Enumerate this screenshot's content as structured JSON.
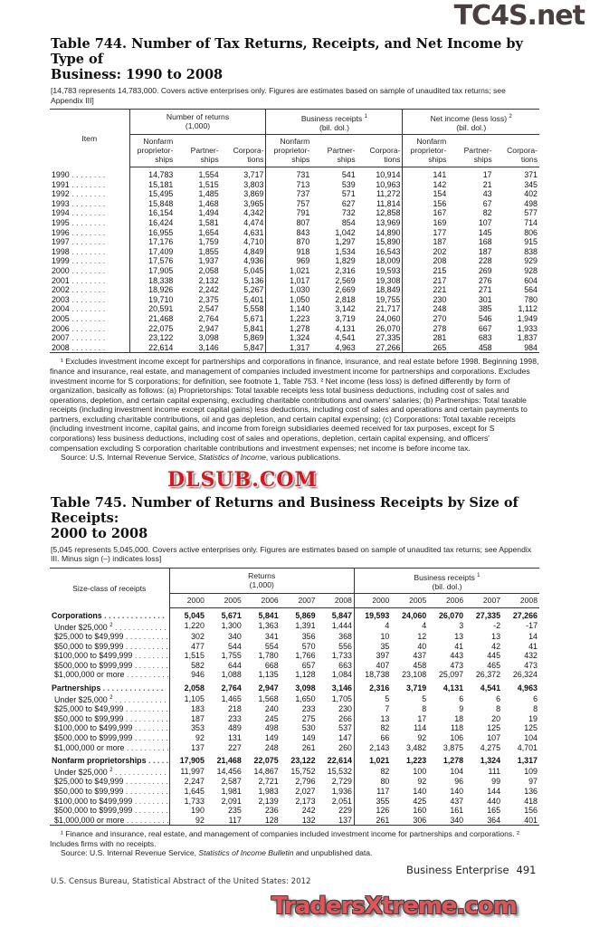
{
  "table744": {
    "title_line1": "Table 744. Number of Tax Returns, Receipts, and Net Income by Type of",
    "title_line2": "Business: 1990 to 2008",
    "note": "[14,783 represents 14,783,000. Covers active enterprises only. Figures are estimates based on sample of unaudited tax returns; see Appendix III]",
    "item_header": "Item",
    "groups": [
      {
        "label": "Number of returns",
        "unit": "(1,000)",
        "sup": ""
      },
      {
        "label": "Business receipts",
        "unit": "(bil. dol.)",
        "sup": "1"
      },
      {
        "label": "Net income (less loss)",
        "unit": "(bil. dol.)",
        "sup": "2"
      }
    ],
    "subheaders": [
      "Nonfarm proprietor-ships",
      "Partner-ships",
      "Corpora-tions"
    ],
    "rows": [
      [
        "1990",
        "14,783",
        "1,554",
        "3,717",
        "731",
        "541",
        "10,914",
        "141",
        "17",
        "371"
      ],
      [
        "1991",
        "15,181",
        "1,515",
        "3,803",
        "713",
        "539",
        "10,963",
        "142",
        "21",
        "345"
      ],
      [
        "1992",
        "15,495",
        "1,485",
        "3,869",
        "737",
        "571",
        "11,272",
        "154",
        "43",
        "402"
      ],
      [
        "1993",
        "15,848",
        "1,468",
        "3,965",
        "757",
        "627",
        "11,814",
        "156",
        "67",
        "498"
      ],
      [
        "1994",
        "16,154",
        "1,494",
        "4,342",
        "791",
        "732",
        "12,858",
        "167",
        "82",
        "577"
      ],
      [
        "1995",
        "16,424",
        "1,581",
        "4,474",
        "807",
        "854",
        "13,969",
        "169",
        "107",
        "714"
      ],
      [
        "1996",
        "16,955",
        "1,654",
        "4,631",
        "843",
        "1,042",
        "14,890",
        "177",
        "145",
        "806"
      ],
      [
        "1997",
        "17,176",
        "1,759",
        "4,710",
        "870",
        "1,297",
        "15,890",
        "187",
        "168",
        "915"
      ],
      [
        "1998",
        "17,409",
        "1,855",
        "4,849",
        "918",
        "1,534",
        "16,543",
        "202",
        "187",
        "838"
      ],
      [
        "1999",
        "17,576",
        "1,937",
        "4,936",
        "969",
        "1,829",
        "18,009",
        "208",
        "228",
        "929"
      ],
      [
        "2000",
        "17,905",
        "2,058",
        "5,045",
        "1,021",
        "2,316",
        "19,593",
        "215",
        "269",
        "928"
      ],
      [
        "2001",
        "18,338",
        "2,132",
        "5,136",
        "1,017",
        "2,569",
        "19,308",
        "217",
        "276",
        "604"
      ],
      [
        "2002",
        "18,926",
        "2,242",
        "5,267",
        "1,030",
        "2,669",
        "18,849",
        "221",
        "271",
        "564"
      ],
      [
        "2003",
        "19,710",
        "2,375",
        "5,401",
        "1,050",
        "2,818",
        "19,755",
        "230",
        "301",
        "780"
      ],
      [
        "2004",
        "20,591",
        "2,547",
        "5,558",
        "1,140",
        "3,142",
        "21,717",
        "248",
        "385",
        "1,112"
      ],
      [
        "2005",
        "21,468",
        "2,764",
        "5,671",
        "1,223",
        "3,719",
        "24,060",
        "270",
        "546",
        "1,949"
      ],
      [
        "2006",
        "22,075",
        "2,947",
        "5,841",
        "1,278",
        "4,131",
        "26,070",
        "278",
        "667",
        "1,933"
      ],
      [
        "2007",
        "23,122",
        "3,098",
        "5,869",
        "1,324",
        "4,541",
        "27,335",
        "281",
        "683",
        "1,837"
      ],
      [
        "2008",
        "22,614",
        "3,146",
        "5,847",
        "1,317",
        "4,963",
        "27,266",
        "265",
        "458",
        "984"
      ]
    ],
    "footnote": "¹ Excludes investment income except for partnerships and corporations in finance, insurance, and real estate before 1998. Beginning 1998, finance and insurance, real estate, and management of companies included investment income for partnerships and corporations. Excludes investment income for S corporations; for definition, see footnote 1, Table 753. ² Net income (less loss) is defined differently by form of organization, basically as follows: (a) Proprietorships: Total taxable receipts less total business deductions, including cost of sales and operations, depletion, and certain capital expensing, excluding charitable contributions and owners' salaries; (b) Partnerships: Total taxable receipts (including investment income except capital gains) less deductions, including cost of sales and operations and certain payments to partners, excluding charitable contributions, oil and gas depletion, and certain capital expensing; (c) Corporations: Total taxable receipts (including investment income, capital gains, and income from foreign subsidiaries deemed received for tax purposes, except for S corporations) less business deductions, including cost of sales and operations, depletion, certain capital expensing, and officers' compensation excluding S corporation charitable contributions and investment expenses; net income is before income tax.",
    "source_prefix": "Source: U.S. Internal Revenue Service, ",
    "source_italic": "Statistics of Income",
    "source_suffix": ", various publications."
  },
  "table745": {
    "title_line1": "Table 745. Number of Returns and Business Receipts by Size of Receipts:",
    "title_line2": "2000 to 2008",
    "note": "[5,045 represents 5,045,000. Covers active enterprises only. Figures are estimates based on sample of unaudited tax returns; see Appendix III. Minus sign (–) indicates loss]",
    "item_header": "Size-class of receipts",
    "groups": [
      {
        "label": "Returns",
        "unit": "(1,000)",
        "sup": ""
      },
      {
        "label": "Business receipts",
        "unit": "(bil. dol.)",
        "sup": "1"
      }
    ],
    "years": [
      "2000",
      "2005",
      "2006",
      "2007",
      "2008"
    ],
    "sections": [
      {
        "label": "Corporations",
        "values": [
          "5,045",
          "5,671",
          "5,841",
          "5,869",
          "5,847",
          "19,593",
          "24,060",
          "26,070",
          "27,335",
          "27,266"
        ],
        "rows": [
          {
            "label": "Under $25,000",
            "sup": "2",
            "values": [
              "1,220",
              "1,300",
              "1,363",
              "1,391",
              "1,444",
              "4",
              "4",
              "3",
              "-2",
              "-17"
            ]
          },
          {
            "label": "$25,000 to $49,999",
            "values": [
              "302",
              "340",
              "341",
              "356",
              "368",
              "10",
              "12",
              "13",
              "13",
              "14"
            ]
          },
          {
            "label": "$50,000 to $99,999",
            "values": [
              "477",
              "544",
              "554",
              "570",
              "556",
              "35",
              "40",
              "41",
              "42",
              "41"
            ]
          },
          {
            "label": "$100,000 to $499,999",
            "values": [
              "1,515",
              "1,755",
              "1,780",
              "1,766",
              "1,733",
              "397",
              "437",
              "443",
              "445",
              "432"
            ]
          },
          {
            "label": "$500,000 to $999,999",
            "values": [
              "582",
              "644",
              "668",
              "657",
              "663",
              "407",
              "458",
              "473",
              "465",
              "473"
            ]
          },
          {
            "label": "$1,000,000 or more",
            "values": [
              "946",
              "1,088",
              "1,135",
              "1,128",
              "1,084",
              "18,738",
              "23,108",
              "25,097",
              "26,372",
              "26,324"
            ]
          }
        ]
      },
      {
        "label": "Partnerships",
        "values": [
          "2,058",
          "2,764",
          "2,947",
          "3,098",
          "3,146",
          "2,316",
          "3,719",
          "4,131",
          "4,541",
          "4,963"
        ],
        "rows": [
          {
            "label": "Under $25,000",
            "sup": "2",
            "values": [
              "1,105",
              "1,465",
              "1,568",
              "1,650",
              "1,705",
              "5",
              "5",
              "6",
              "6",
              "6"
            ]
          },
          {
            "label": "$25,000 to $49,999",
            "values": [
              "183",
              "218",
              "240",
              "233",
              "230",
              "7",
              "8",
              "9",
              "8",
              "8"
            ]
          },
          {
            "label": "$50,000 to $99,999",
            "values": [
              "187",
              "233",
              "245",
              "275",
              "266",
              "13",
              "17",
              "18",
              "20",
              "19"
            ]
          },
          {
            "label": "$100,000 to $499,999",
            "values": [
              "353",
              "489",
              "498",
              "530",
              "537",
              "82",
              "114",
              "118",
              "125",
              "125"
            ]
          },
          {
            "label": "$500,000 to $999,999",
            "values": [
              "92",
              "131",
              "149",
              "149",
              "147",
              "66",
              "92",
              "106",
              "107",
              "104"
            ]
          },
          {
            "label": "$1,000,000 or more",
            "values": [
              "137",
              "227",
              "248",
              "261",
              "260",
              "2,143",
              "3,482",
              "3,875",
              "4,275",
              "4,701"
            ]
          }
        ]
      },
      {
        "label": "Nonfarm proprietorships",
        "values": [
          "17,905",
          "21,468",
          "22,075",
          "23,122",
          "22,614",
          "1,021",
          "1,223",
          "1,278",
          "1,324",
          "1,317"
        ],
        "rows": [
          {
            "label": "Under $25,000",
            "sup": "2",
            "values": [
              "11,997",
              "14,456",
              "14,867",
              "15,752",
              "15,532",
              "82",
              "100",
              "104",
              "111",
              "109"
            ]
          },
          {
            "label": "$25,000 to $49,999",
            "values": [
              "2,247",
              "2,587",
              "2,721",
              "2,796",
              "2,729",
              "80",
              "92",
              "96",
              "99",
              "97"
            ]
          },
          {
            "label": "$50,000 to $99,999",
            "values": [
              "1,645",
              "1,981",
              "1,983",
              "2,027",
              "1,936",
              "117",
              "140",
              "140",
              "144",
              "136"
            ]
          },
          {
            "label": "$100,000 to $499,999",
            "values": [
              "1,733",
              "2,091",
              "2,139",
              "2,173",
              "2,051",
              "355",
              "425",
              "437",
              "440",
              "418"
            ]
          },
          {
            "label": "$500,000 to $999,999",
            "values": [
              "190",
              "235",
              "236",
              "242",
              "229",
              "126",
              "160",
              "161",
              "165",
              "156"
            ]
          },
          {
            "label": "$1,000,000 or more",
            "values": [
              "92",
              "117",
              "128",
              "132",
              "137",
              "261",
              "306",
              "340",
              "364",
              "401"
            ]
          }
        ]
      }
    ],
    "footnote": "¹ Finance and insurance, real estate, and management of companies included investment income for partnerships and corporations. ² Includes firms with no receipts.",
    "source_prefix": "Source: U.S. Internal Revenue Service, ",
    "source_italic": "Statistics of Income Bulletin",
    "source_suffix": " and unpublished data."
  },
  "page_footer": {
    "section": "Business Enterprise",
    "page_number": "491",
    "publication": "U.S. Census Bureau, Statistical Abstract of the United States: 2012"
  },
  "watermarks": {
    "top": "TC4S.net",
    "middle": "DLSUB.COM",
    "bottom": "TradersXtreme.com"
  }
}
